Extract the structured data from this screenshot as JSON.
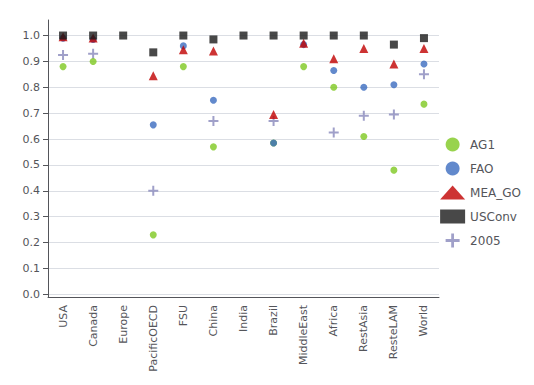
{
  "chart_data": {
    "type": "scatter",
    "categories": [
      "USA",
      "Canada",
      "Europe",
      "PacificOECD",
      "FSU",
      "China",
      "India",
      "Brazil",
      "MiddleEast",
      "Africa",
      "RestAsia",
      "ResteLAM",
      "World"
    ],
    "series": [
      {
        "name": "AG1",
        "color": "#7ec820",
        "marker": "circle",
        "values": [
          0.88,
          0.9,
          null,
          0.23,
          0.88,
          0.57,
          null,
          0.585,
          0.88,
          0.8,
          0.61,
          0.48,
          0.735
        ]
      },
      {
        "name": "FAO",
        "color": "#3b6bbf",
        "marker": "circle",
        "values": [
          0.99,
          0.985,
          null,
          0.655,
          0.96,
          0.75,
          null,
          0.585,
          0.965,
          0.865,
          0.8,
          0.81,
          0.89
        ]
      },
      {
        "name": "MEA_GO",
        "color": "#c00000",
        "marker": "triangle",
        "values": [
          0.995,
          0.99,
          null,
          0.845,
          0.945,
          0.94,
          null,
          0.695,
          0.97,
          0.91,
          0.95,
          0.89,
          0.95
        ]
      },
      {
        "name": "USConv",
        "color": "#1a1a1a",
        "marker": "square",
        "values": [
          1.0,
          1.0,
          1.0,
          0.935,
          1.0,
          0.985,
          1.0,
          1.0,
          1.0,
          1.0,
          1.0,
          0.965,
          0.99
        ]
      },
      {
        "name": "2005",
        "color": "#8888bb",
        "marker": "plus",
        "values": [
          0.925,
          0.93,
          null,
          0.4,
          null,
          0.67,
          null,
          0.67,
          null,
          0.625,
          0.69,
          0.695,
          0.85
        ]
      }
    ],
    "ylim": [
      -0.01,
      1.06
    ],
    "yticks": [
      {
        "value": 0.0,
        "label": "0.0"
      },
      0.1,
      0.2,
      0.3,
      0.4,
      0.5,
      0.6,
      0.7,
      0.8,
      0.9,
      {
        "value": 1.0,
        "label": "1.0"
      }
    ],
    "grid": true,
    "legend": "right"
  }
}
